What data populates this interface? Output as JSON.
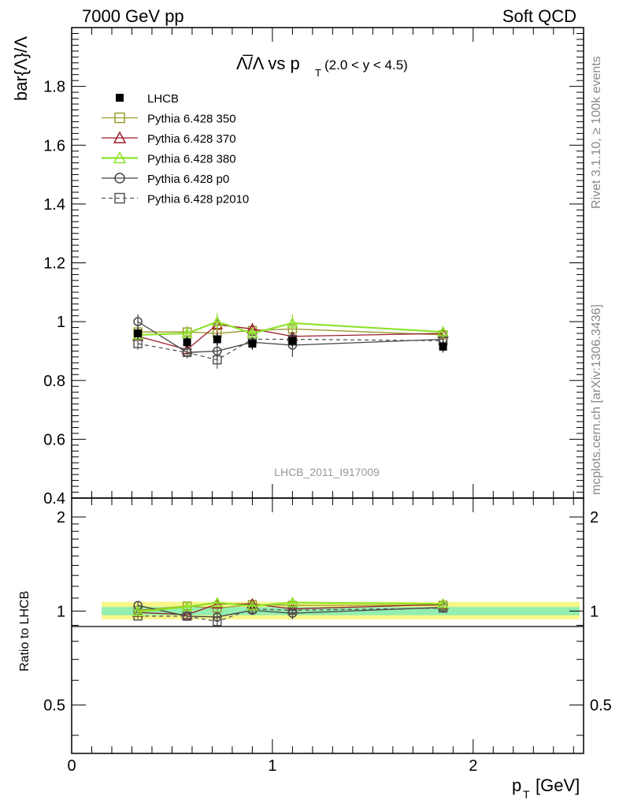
{
  "header": {
    "left": "7000 GeV pp",
    "right": "Soft QCD"
  },
  "side": {
    "rivet": "Rivet 3.1.10, ≥ 100k events",
    "source": "mcplots.cern.ch [arXiv:1306.3436]"
  },
  "watermark": "LHCB_2011_I917009",
  "chart_data": {
    "type": "scatter",
    "title": {
      "main": "Λ̅/Λ vs p",
      "sub": "T",
      "range": "(2.0 < y < 4.5)"
    },
    "ylabel": "bar{Λ}/Λ",
    "ratio_ylabel": "Ratio to LHCB",
    "xlabel": "p",
    "xlabel_sub": "T",
    "xlabel_unit": "[GeV]",
    "xlim": [
      0,
      2.55
    ],
    "ylim": [
      0.4,
      2.0
    ],
    "ratio_ylim": [
      0.35,
      2.3
    ],
    "xticks": [
      "0",
      "1",
      "2"
    ],
    "yticks": [
      "0.4",
      "0.6",
      "0.8",
      "1",
      "1.2",
      "1.4",
      "1.6",
      "1.8"
    ],
    "ratio_yticks": [
      "0.5",
      "1",
      "2"
    ],
    "x": [
      0.33,
      0.575,
      0.725,
      0.9,
      1.1,
      1.85
    ],
    "band_x": [
      0.15,
      2.53
    ],
    "band_inner": [
      0.97,
      1.03
    ],
    "band_outer": [
      0.94,
      1.07
    ],
    "legend_position": "top-left",
    "series": [
      {
        "name": "LHCB",
        "marker": "filled-square",
        "color": "#000000",
        "dashed": false,
        "values": [
          0.96,
          0.93,
          0.94,
          0.925,
          0.935,
          0.915
        ],
        "errors": [
          0.02,
          0.02,
          0.02,
          0.02,
          0.02,
          0.02
        ]
      },
      {
        "name": "Pythia 6.428 350",
        "marker": "open-square",
        "color": "#9a9a2a",
        "dashed": false,
        "values": [
          0.965,
          0.965,
          0.96,
          0.97,
          0.975,
          0.955
        ],
        "errors": [
          0.02,
          0.02,
          0.03,
          0.02,
          0.03,
          0.02
        ]
      },
      {
        "name": "Pythia 6.428 370",
        "marker": "open-triangle",
        "color": "#9b1c2a",
        "dashed": false,
        "values": [
          0.95,
          0.905,
          0.99,
          0.975,
          0.95,
          0.96
        ],
        "errors": [
          0.02,
          0.02,
          0.03,
          0.02,
          0.03,
          0.02
        ]
      },
      {
        "name": "Pythia 6.428 380",
        "marker": "open-triangle",
        "color": "#8ee22a",
        "dashed": false,
        "values": [
          0.955,
          0.96,
          1.0,
          0.96,
          0.995,
          0.965
        ],
        "errors": [
          0.02,
          0.02,
          0.03,
          0.02,
          0.03,
          0.02
        ]
      },
      {
        "name": "Pythia 6.428 p0",
        "marker": "open-circle",
        "color": "#444444",
        "dashed": false,
        "values": [
          1.0,
          0.895,
          0.9,
          0.93,
          0.92,
          0.94
        ],
        "errors": [
          0.025,
          0.02,
          0.03,
          0.025,
          0.04,
          0.02
        ]
      },
      {
        "name": "Pythia 6.428 p2010",
        "marker": "open-square",
        "color": "#555555",
        "dashed": true,
        "values": [
          0.925,
          0.895,
          0.87,
          0.94,
          0.94,
          0.935
        ],
        "errors": [
          0.02,
          0.02,
          0.03,
          0.02,
          0.03,
          0.02
        ]
      }
    ]
  }
}
